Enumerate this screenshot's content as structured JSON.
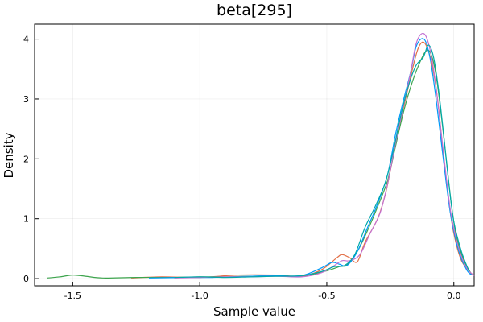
{
  "chart_data": {
    "type": "line",
    "title": "beta[295]",
    "xlabel": "Sample value",
    "ylabel": "Density",
    "xlim": [
      -1.65,
      0.08
    ],
    "ylim": [
      -0.12,
      4.25
    ],
    "xticks": [
      -1.5,
      -1.0,
      -0.5,
      0.0
    ],
    "xtick_labels": [
      "-1.5",
      "-1.0",
      "-0.5",
      "0.0"
    ],
    "yticks": [
      0,
      1,
      2,
      3,
      4
    ],
    "ytick_labels": [
      "0",
      "1",
      "2",
      "3",
      "4"
    ],
    "grid": true,
    "legend": "none",
    "series": [
      {
        "color": "#e26f46",
        "points": [
          [
            -1.27,
            0.01
          ],
          [
            -1.15,
            0.03
          ],
          [
            -1.0,
            0.02
          ],
          [
            -0.85,
            0.06
          ],
          [
            -0.7,
            0.06
          ],
          [
            -0.6,
            0.04
          ],
          [
            -0.52,
            0.15
          ],
          [
            -0.46,
            0.35
          ],
          [
            -0.44,
            0.4
          ],
          [
            -0.41,
            0.35
          ],
          [
            -0.38,
            0.28
          ],
          [
            -0.35,
            0.6
          ],
          [
            -0.3,
            1.0
          ],
          [
            -0.27,
            1.4
          ],
          [
            -0.25,
            1.8
          ],
          [
            -0.22,
            2.45
          ],
          [
            -0.19,
            3.0
          ],
          [
            -0.16,
            3.55
          ],
          [
            -0.14,
            3.85
          ],
          [
            -0.12,
            3.95
          ],
          [
            -0.1,
            3.8
          ],
          [
            -0.08,
            3.45
          ],
          [
            -0.06,
            2.85
          ],
          [
            -0.04,
            2.0
          ],
          [
            -0.02,
            1.3
          ],
          [
            0.0,
            0.75
          ],
          [
            0.03,
            0.3
          ],
          [
            0.07,
            0.08
          ]
        ]
      },
      {
        "color": "#3da44d",
        "points": [
          [
            -1.6,
            0.01
          ],
          [
            -1.55,
            0.03
          ],
          [
            -1.5,
            0.06
          ],
          [
            -1.45,
            0.04
          ],
          [
            -1.38,
            0.01
          ],
          [
            -1.25,
            0.02
          ],
          [
            -1.1,
            0.02
          ],
          [
            -1.0,
            0.03
          ],
          [
            -0.9,
            0.03
          ],
          [
            -0.8,
            0.04
          ],
          [
            -0.7,
            0.05
          ],
          [
            -0.6,
            0.04
          ],
          [
            -0.5,
            0.13
          ],
          [
            -0.45,
            0.2
          ],
          [
            -0.42,
            0.23
          ],
          [
            -0.38,
            0.45
          ],
          [
            -0.34,
            0.8
          ],
          [
            -0.3,
            1.2
          ],
          [
            -0.26,
            1.65
          ],
          [
            -0.23,
            2.2
          ],
          [
            -0.2,
            2.75
          ],
          [
            -0.17,
            3.2
          ],
          [
            -0.14,
            3.55
          ],
          [
            -0.11,
            3.8
          ],
          [
            -0.09,
            3.75
          ],
          [
            -0.07,
            3.4
          ],
          [
            -0.05,
            2.75
          ],
          [
            -0.03,
            2.0
          ],
          [
            -0.01,
            1.25
          ],
          [
            0.01,
            0.7
          ],
          [
            0.04,
            0.3
          ],
          [
            0.07,
            0.07
          ]
        ]
      },
      {
        "color": "#009af9",
        "points": [
          [
            -1.2,
            0.01
          ],
          [
            -1.05,
            0.02
          ],
          [
            -0.95,
            0.02
          ],
          [
            -0.8,
            0.04
          ],
          [
            -0.7,
            0.05
          ],
          [
            -0.6,
            0.05
          ],
          [
            -0.52,
            0.18
          ],
          [
            -0.48,
            0.27
          ],
          [
            -0.45,
            0.24
          ],
          [
            -0.42,
            0.22
          ],
          [
            -0.38,
            0.45
          ],
          [
            -0.34,
            0.85
          ],
          [
            -0.3,
            1.25
          ],
          [
            -0.26,
            1.75
          ],
          [
            -0.23,
            2.4
          ],
          [
            -0.2,
            2.95
          ],
          [
            -0.17,
            3.45
          ],
          [
            -0.15,
            3.85
          ],
          [
            -0.13,
            4.0
          ],
          [
            -0.11,
            3.95
          ],
          [
            -0.09,
            3.6
          ],
          [
            -0.07,
            3.0
          ],
          [
            -0.05,
            2.3
          ],
          [
            -0.03,
            1.6
          ],
          [
            -0.01,
            1.0
          ],
          [
            0.02,
            0.45
          ],
          [
            0.05,
            0.15
          ],
          [
            0.07,
            0.06
          ]
        ]
      },
      {
        "color": "#c271d2",
        "points": [
          [
            -1.1,
            0.01
          ],
          [
            -1.0,
            0.02
          ],
          [
            -0.9,
            0.03
          ],
          [
            -0.8,
            0.03
          ],
          [
            -0.7,
            0.04
          ],
          [
            -0.6,
            0.03
          ],
          [
            -0.52,
            0.1
          ],
          [
            -0.47,
            0.22
          ],
          [
            -0.44,
            0.3
          ],
          [
            -0.41,
            0.3
          ],
          [
            -0.37,
            0.4
          ],
          [
            -0.33,
            0.75
          ],
          [
            -0.29,
            1.1
          ],
          [
            -0.26,
            1.6
          ],
          [
            -0.23,
            2.25
          ],
          [
            -0.2,
            2.85
          ],
          [
            -0.17,
            3.45
          ],
          [
            -0.15,
            3.9
          ],
          [
            -0.13,
            4.08
          ],
          [
            -0.11,
            4.05
          ],
          [
            -0.09,
            3.75
          ],
          [
            -0.07,
            3.2
          ],
          [
            -0.05,
            2.45
          ],
          [
            -0.03,
            1.7
          ],
          [
            -0.01,
            1.05
          ],
          [
            0.02,
            0.5
          ],
          [
            0.05,
            0.18
          ],
          [
            0.08,
            0.05
          ]
        ]
      },
      {
        "color": "#00a8ab",
        "points": [
          [
            -1.1,
            0.02
          ],
          [
            -1.0,
            0.03
          ],
          [
            -0.9,
            0.02
          ],
          [
            -0.8,
            0.03
          ],
          [
            -0.7,
            0.04
          ],
          [
            -0.6,
            0.05
          ],
          [
            -0.52,
            0.12
          ],
          [
            -0.47,
            0.2
          ],
          [
            -0.43,
            0.22
          ],
          [
            -0.39,
            0.4
          ],
          [
            -0.35,
            0.85
          ],
          [
            -0.31,
            1.2
          ],
          [
            -0.27,
            1.6
          ],
          [
            -0.24,
            2.1
          ],
          [
            -0.21,
            2.7
          ],
          [
            -0.18,
            3.2
          ],
          [
            -0.15,
            3.55
          ],
          [
            -0.12,
            3.7
          ],
          [
            -0.1,
            3.9
          ],
          [
            -0.08,
            3.7
          ],
          [
            -0.06,
            3.15
          ],
          [
            -0.04,
            2.4
          ],
          [
            -0.02,
            1.6
          ],
          [
            0.0,
            0.95
          ],
          [
            0.03,
            0.45
          ],
          [
            0.06,
            0.12
          ]
        ]
      }
    ]
  }
}
